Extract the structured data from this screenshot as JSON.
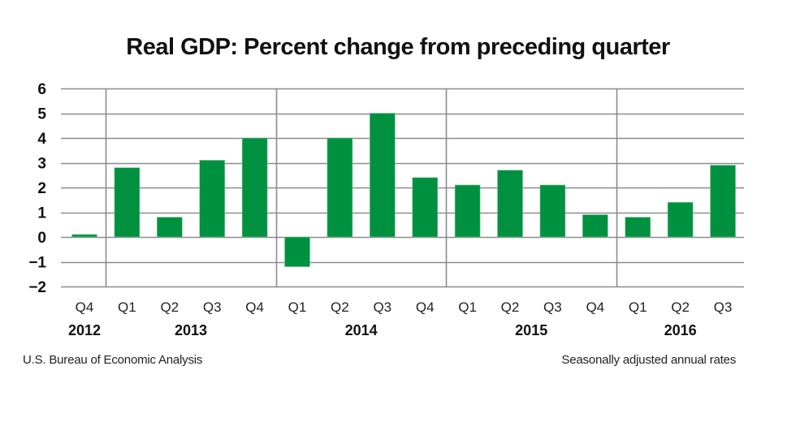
{
  "chart_data": {
    "type": "bar",
    "title": "Real GDP: Percent change from preceding quarter",
    "xlabel": "",
    "ylabel": "",
    "ylim": [
      -2,
      6
    ],
    "yticks": [
      6,
      5,
      4,
      3,
      2,
      1,
      0,
      -1,
      -2
    ],
    "ytick_labels": [
      "6",
      "5",
      "4",
      "3",
      "2",
      "1",
      "0",
      "−1",
      "−2"
    ],
    "grid": true,
    "categories": [
      "Q4 2012",
      "Q1 2013",
      "Q2 2013",
      "Q3 2013",
      "Q4 2013",
      "Q1 2014",
      "Q2 2014",
      "Q3 2014",
      "Q4 2014",
      "Q1 2015",
      "Q2 2015",
      "Q3 2015",
      "Q4 2015",
      "Q1 2016",
      "Q2 2016",
      "Q3 2016"
    ],
    "quarter_labels": [
      "Q4",
      "Q1",
      "Q2",
      "Q3",
      "Q4",
      "Q1",
      "Q2",
      "Q3",
      "Q4",
      "Q1",
      "Q2",
      "Q3",
      "Q4",
      "Q1",
      "Q2",
      "Q3"
    ],
    "year_groups": [
      {
        "label": "2012",
        "start": 0,
        "end": 0
      },
      {
        "label": "2013",
        "start": 1,
        "end": 4
      },
      {
        "label": "2014",
        "start": 5,
        "end": 8
      },
      {
        "label": "2015",
        "start": 9,
        "end": 12
      },
      {
        "label": "2016",
        "start": 13,
        "end": 15
      }
    ],
    "series": [
      {
        "name": "Real GDP % change",
        "color": "#009140",
        "values": [
          0.1,
          2.8,
          0.8,
          3.1,
          4.0,
          -1.2,
          4.0,
          5.0,
          2.4,
          2.1,
          2.7,
          2.1,
          0.9,
          0.8,
          1.4,
          2.9
        ]
      }
    ],
    "source": "U.S. Bureau of Economic Analysis",
    "note": "Seasonally adjusted annual rates"
  },
  "colors": {
    "bar": "#009140",
    "grid": "#8c8c8c",
    "separator": "#8c8c8c"
  }
}
